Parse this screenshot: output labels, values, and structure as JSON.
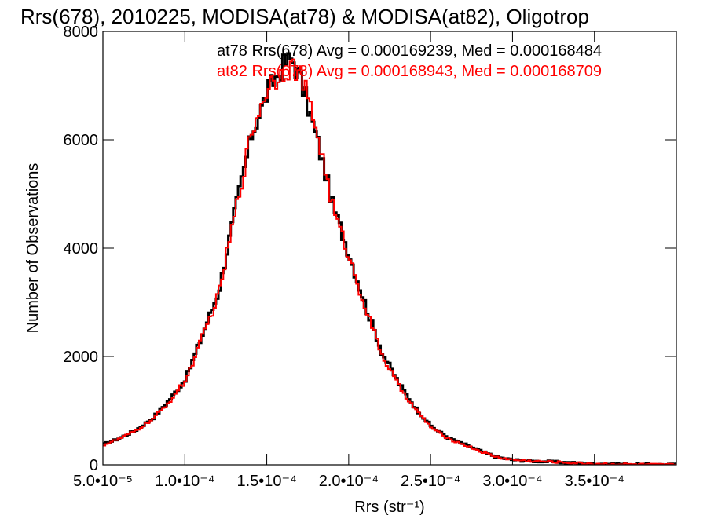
{
  "chart_data": {
    "type": "histogram",
    "title": "Rrs(678), 2010225, MODISA(at78) & MODISA(at82), Oligotrop",
    "xlabel": "Rrs (str⁻¹)",
    "ylabel": "Number of Observations",
    "xlim": [
      5e-05,
      0.0004
    ],
    "ylim": [
      0,
      8000
    ],
    "x_ticks": [
      {
        "value": 5e-05,
        "label": "5.0•10⁻⁵"
      },
      {
        "value": 0.0001,
        "label": "1.0•10⁻⁴"
      },
      {
        "value": 0.00015,
        "label": "1.5•10⁻⁴"
      },
      {
        "value": 0.0002,
        "label": "2.0•10⁻⁴"
      },
      {
        "value": 0.00025,
        "label": "2.5•10⁻⁴"
      },
      {
        "value": 0.0003,
        "label": "3.0•10⁻⁴"
      },
      {
        "value": 0.00035,
        "label": "3.5•10⁻⁴"
      }
    ],
    "y_ticks": [
      {
        "value": 0,
        "label": "0"
      },
      {
        "value": 2000,
        "label": "2000"
      },
      {
        "value": 4000,
        "label": "4000"
      },
      {
        "value": 6000,
        "label": "6000"
      },
      {
        "value": 8000,
        "label": "8000"
      }
    ],
    "x_centers": [
      5e-05,
      6e-05,
      7e-05,
      8e-05,
      9e-05,
      0.0001,
      0.00011,
      0.00012,
      0.00013,
      0.00014,
      0.00015,
      0.00016,
      0.000165,
      0.00017,
      0.00018,
      0.00019,
      0.0002,
      0.00021,
      0.00022,
      0.00023,
      0.00024,
      0.00025,
      0.00026,
      0.00027,
      0.00028,
      0.00029,
      0.0003,
      0.00031,
      0.00032,
      0.00033,
      0.00034,
      0.00035,
      0.00036,
      0.00037,
      0.00038,
      0.00039,
      0.0004
    ],
    "series": [
      {
        "name": "at78",
        "color": "#000000",
        "values": [
          380,
          500,
          650,
          870,
          1200,
          1600,
          2400,
          3200,
          4700,
          6100,
          6900,
          7400,
          7500,
          7100,
          6000,
          4750,
          3850,
          2900,
          2050,
          1500,
          1050,
          700,
          500,
          380,
          250,
          140,
          90,
          70,
          60,
          45,
          30,
          20,
          15,
          10,
          5,
          3,
          2
        ]
      },
      {
        "name": "at82",
        "color": "#ff0000",
        "values": [
          370,
          490,
          640,
          850,
          1170,
          1570,
          2350,
          3150,
          4650,
          6150,
          7000,
          7300,
          7350,
          7200,
          6150,
          4700,
          3800,
          2850,
          2000,
          1450,
          1020,
          680,
          480,
          370,
          245,
          140,
          90,
          70,
          60,
          45,
          30,
          20,
          15,
          10,
          5,
          3,
          2
        ]
      }
    ],
    "legend": {
      "placement": "top-right",
      "entries": [
        {
          "text": "at78 Rrs(678) Avg = 0.000169239, Med = 0.000168484",
          "color": "#000000"
        },
        {
          "text": "at82 Rrs(678) Avg = 0.000168943, Med = 0.000168709",
          "color": "#ff0000"
        }
      ]
    },
    "grid": false
  }
}
